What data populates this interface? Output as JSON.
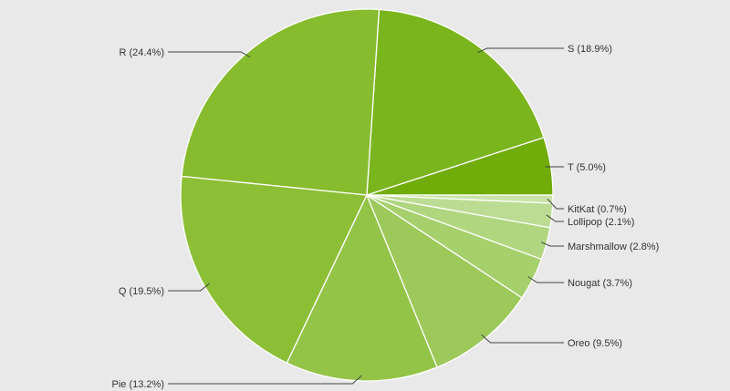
{
  "chart_data": {
    "type": "pie",
    "start_angle_deg": 0,
    "direction": "counter-clockwise",
    "slices": [
      {
        "label": "T (5.0%)",
        "name": "T",
        "value": 5.0,
        "color": "#70ac0a"
      },
      {
        "label": "S (18.9%)",
        "name": "S",
        "value": 18.9,
        "color": "#7ab51d"
      },
      {
        "label": "R (24.4%)",
        "name": "R",
        "value": 24.4,
        "color": "#86bc2e"
      },
      {
        "label": "Q (19.5%)",
        "name": "Q",
        "value": 19.5,
        "color": "#8cbf36"
      },
      {
        "label": "Pie (13.2%)",
        "name": "Pie",
        "value": 13.2,
        "color": "#93c447"
      },
      {
        "label": "Oreo (9.5%)",
        "name": "Oreo",
        "value": 9.5,
        "color": "#9cc95a"
      },
      {
        "label": "Nougat (3.7%)",
        "name": "Nougat",
        "value": 3.7,
        "color": "#a6d06c"
      },
      {
        "label": "Marshmallow (2.8%)",
        "name": "Marshmallow",
        "value": 2.8,
        "color": "#b0d67f"
      },
      {
        "label": "Lollipop (2.1%)",
        "name": "Lollipop",
        "value": 2.1,
        "color": "#bcdc93"
      },
      {
        "label": "KitKat (0.7%)",
        "name": "KitKat",
        "value": 0.7,
        "color": "#c9e3a8"
      }
    ]
  }
}
